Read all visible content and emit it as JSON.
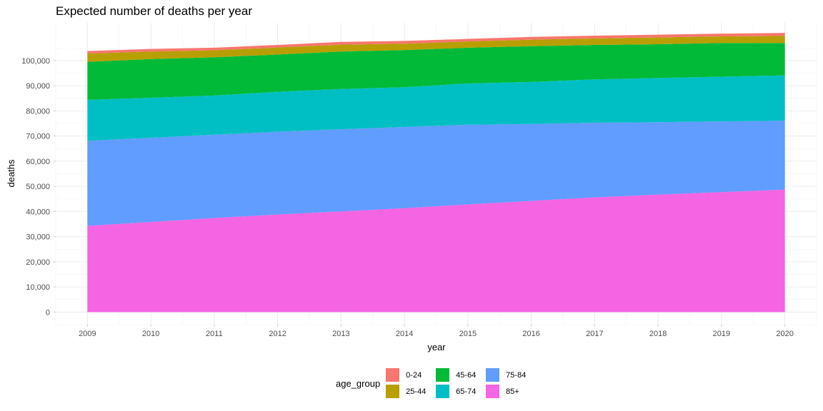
{
  "chart_data": {
    "type": "area",
    "stacked": true,
    "title": "Expected number of deaths per year",
    "xlabel": "year",
    "ylabel": "deaths",
    "x": [
      2009,
      2010,
      2011,
      2012,
      2013,
      2014,
      2015,
      2016,
      2017,
      2018,
      2019,
      2020
    ],
    "xlim": [
      2008.5,
      2020.5
    ],
    "ylim": [
      -5000,
      115000
    ],
    "y_ticks": [
      0,
      10000,
      20000,
      30000,
      40000,
      50000,
      60000,
      70000,
      80000,
      90000,
      100000
    ],
    "y_tick_labels": [
      "0",
      "10,000",
      "20,000",
      "30,000",
      "40,000",
      "50,000",
      "60,000",
      "70,000",
      "80,000",
      "90,000",
      "100,000"
    ],
    "x_tick_labels": [
      "2009",
      "2010",
      "2011",
      "2012",
      "2013",
      "2014",
      "2015",
      "2016",
      "2017",
      "2018",
      "2019",
      "2020"
    ],
    "grid": true,
    "legend_title": "age_group",
    "legend_position": "bottom",
    "series": [
      {
        "name": "85+",
        "color": "#F564E3",
        "values": [
          34300,
          35800,
          37400,
          38800,
          40000,
          41300,
          42800,
          44200,
          45600,
          46700,
          47700,
          48700
        ]
      },
      {
        "name": "75-84",
        "color": "#619CFF",
        "values": [
          33800,
          33500,
          33100,
          32900,
          32700,
          32300,
          31700,
          30600,
          29700,
          28800,
          28100,
          27400
        ]
      },
      {
        "name": "65-74",
        "color": "#00BFC4",
        "values": [
          16300,
          15900,
          15600,
          15900,
          16000,
          15800,
          16400,
          16700,
          17200,
          17600,
          17800,
          18000
        ]
      },
      {
        "name": "45-64",
        "color": "#00BA38",
        "values": [
          15100,
          15400,
          15200,
          14800,
          14900,
          14800,
          14200,
          14200,
          13700,
          13400,
          13400,
          12900
        ]
      },
      {
        "name": "25-44",
        "color": "#B79F00",
        "values": [
          3300,
          3000,
          2800,
          2800,
          2700,
          2500,
          2500,
          2600,
          2600,
          2700,
          2600,
          2800
        ]
      },
      {
        "name": "0-24",
        "color": "#F8766D",
        "values": [
          1000,
          1000,
          1000,
          1000,
          1100,
          1100,
          1000,
          1100,
          1100,
          1100,
          1100,
          1200
        ]
      }
    ]
  }
}
